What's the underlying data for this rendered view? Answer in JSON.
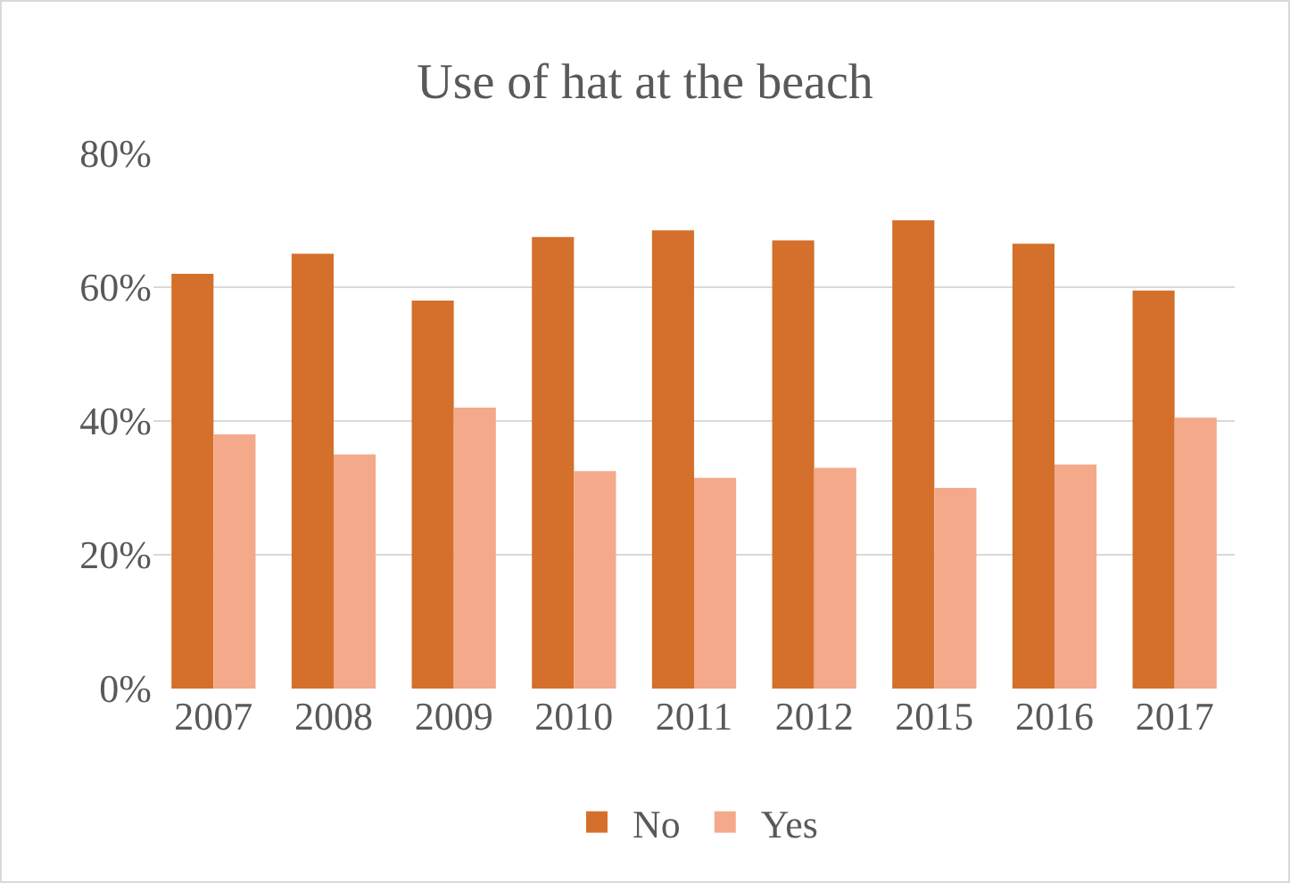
{
  "chart_data": {
    "type": "bar",
    "title": "Use of hat at the beach",
    "categories": [
      "2007",
      "2008",
      "2009",
      "2010",
      "2011",
      "2012",
      "2015",
      "2016",
      "2017"
    ],
    "series": [
      {
        "name": "No",
        "color": "#d4702b",
        "values": [
          62,
          65,
          58,
          67.5,
          68.5,
          67,
          70,
          66.5,
          59.5
        ]
      },
      {
        "name": "Yes",
        "color": "#f4a98a",
        "values": [
          38,
          35,
          42,
          32.5,
          31.5,
          33,
          30,
          33.5,
          40.5
        ]
      }
    ],
    "ylim": [
      0,
      80
    ],
    "yticks": [
      {
        "value": 0,
        "label": "0%"
      },
      {
        "value": 20,
        "label": "20%"
      },
      {
        "value": 40,
        "label": "40%"
      },
      {
        "value": 60,
        "label": "60%"
      },
      {
        "value": 80,
        "label": "80%"
      }
    ],
    "grid": "y",
    "legend": "bottom"
  }
}
